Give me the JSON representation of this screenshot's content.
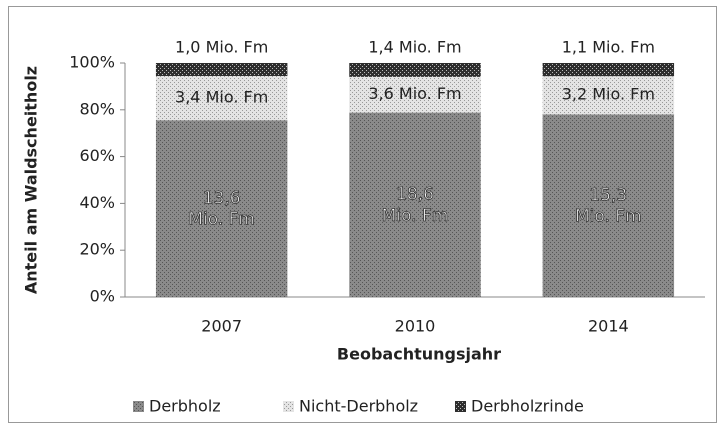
{
  "chart_data": {
    "type": "stacked_percent_bar",
    "categories": [
      "2007",
      "2010",
      "2014"
    ],
    "series": [
      {
        "name": "Derbholz",
        "color": "#8a8a8a",
        "values": [
          13.6,
          18.6,
          15.3
        ],
        "value_labels": [
          "13,6 Mio. Fm",
          "18,6 Mio. Fm",
          "15,3 Mio. Fm"
        ]
      },
      {
        "name": "Nicht-Derbholz",
        "color": "#e4e4e4",
        "values": [
          3.4,
          3.6,
          3.2
        ],
        "value_labels": [
          "3,4 Mio. Fm",
          "3,6 Mio. Fm",
          "3,2 Mio. Fm"
        ]
      },
      {
        "name": "Derbholzrinde",
        "color": "#2e2e2e",
        "values": [
          1.0,
          1.4,
          1.1
        ],
        "value_labels": [
          "1,0 Mio. Fm",
          "1,4 Mio. Fm",
          "1,1 Mio. Fm"
        ]
      }
    ],
    "ylim": [
      0,
      100
    ],
    "yticks": [
      {
        "value": 0,
        "label": "0%"
      },
      {
        "value": 20,
        "label": "20%"
      },
      {
        "value": 40,
        "label": "40%"
      },
      {
        "value": 60,
        "label": "60%"
      },
      {
        "value": 80,
        "label": "80%"
      },
      {
        "value": 100,
        "label": "100%"
      }
    ],
    "ylabel": "Anteil am Waldscheitholz",
    "xlabel": "Beobachtungsjahr",
    "legend": "bottom"
  }
}
